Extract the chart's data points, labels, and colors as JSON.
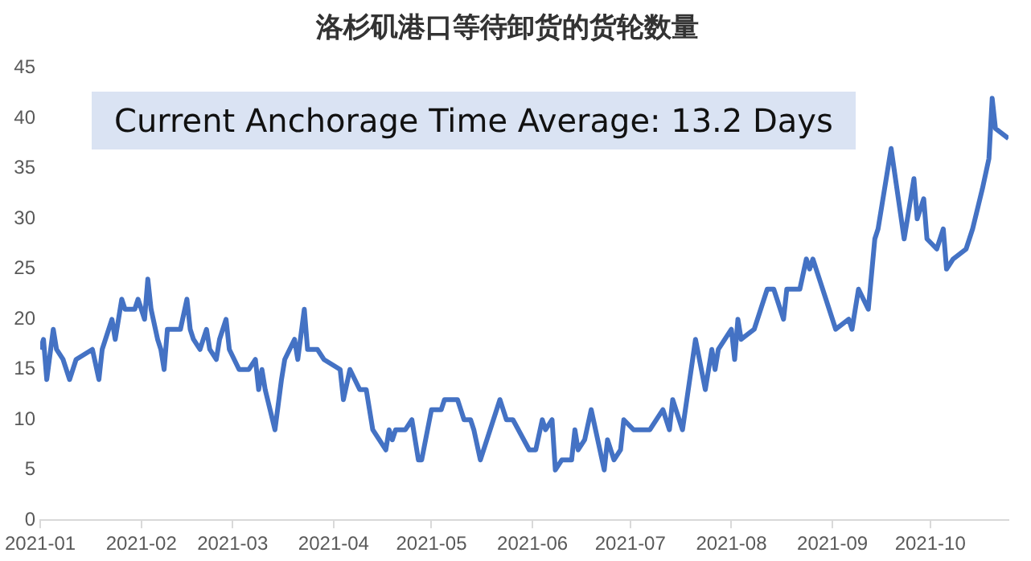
{
  "chart_data": {
    "type": "line",
    "title": "洛杉矶港口等待卸货的货轮数量",
    "annotations": [
      "Current Anchorage Time Average: 13.2 Days"
    ],
    "x": [
      "2021-01-01",
      "2021-01-02",
      "2021-01-03",
      "2021-01-05",
      "2021-01-06",
      "2021-01-08",
      "2021-01-10",
      "2021-01-12",
      "2021-01-17",
      "2021-01-19",
      "2021-01-20",
      "2021-01-23",
      "2021-01-24",
      "2021-01-26",
      "2021-01-27",
      "2021-01-30",
      "2021-01-31",
      "2021-02-02",
      "2021-02-03",
      "2021-02-04",
      "2021-02-06",
      "2021-02-07",
      "2021-02-08",
      "2021-02-09",
      "2021-02-13",
      "2021-02-15",
      "2021-02-16",
      "2021-02-17",
      "2021-02-19",
      "2021-02-21",
      "2021-02-22",
      "2021-02-24",
      "2021-02-25",
      "2021-02-27",
      "2021-02-28",
      "2021-03-03",
      "2021-03-06",
      "2021-03-08",
      "2021-03-09",
      "2021-03-10",
      "2021-03-11",
      "2021-03-14",
      "2021-03-16",
      "2021-03-17",
      "2021-03-20",
      "2021-03-21",
      "2021-03-23",
      "2021-03-24",
      "2021-03-27",
      "2021-03-29",
      "2021-04-03",
      "2021-04-04",
      "2021-04-06",
      "2021-04-09",
      "2021-04-11",
      "2021-04-13",
      "2021-04-15",
      "2021-04-17",
      "2021-04-18",
      "2021-04-19",
      "2021-04-20",
      "2021-04-23",
      "2021-04-25",
      "2021-04-27",
      "2021-04-28",
      "2021-05-01",
      "2021-05-04",
      "2021-05-05",
      "2021-05-09",
      "2021-05-11",
      "2021-05-13",
      "2021-05-14",
      "2021-05-16",
      "2021-05-19",
      "2021-05-22",
      "2021-05-24",
      "2021-05-26",
      "2021-05-31",
      "2021-06-02",
      "2021-06-04",
      "2021-06-05",
      "2021-06-07",
      "2021-06-08",
      "2021-06-10",
      "2021-06-13",
      "2021-06-14",
      "2021-06-15",
      "2021-06-17",
      "2021-06-19",
      "2021-06-21",
      "2021-06-23",
      "2021-06-24",
      "2021-06-26",
      "2021-06-28",
      "2021-06-29",
      "2021-07-02",
      "2021-07-07",
      "2021-07-11",
      "2021-07-13",
      "2021-07-14",
      "2021-07-17",
      "2021-07-21",
      "2021-07-24",
      "2021-07-26",
      "2021-07-27",
      "2021-07-28",
      "2021-07-30",
      "2021-08-01",
      "2021-08-02",
      "2021-08-03",
      "2021-08-04",
      "2021-08-08",
      "2021-08-12",
      "2021-08-14",
      "2021-08-17",
      "2021-08-18",
      "2021-08-22",
      "2021-08-24",
      "2021-08-25",
      "2021-08-26",
      "2021-08-29",
      "2021-08-31",
      "2021-09-02",
      "2021-09-06",
      "2021-09-07",
      "2021-09-09",
      "2021-09-12",
      "2021-09-14",
      "2021-09-15",
      "2021-09-19",
      "2021-09-23",
      "2021-09-26",
      "2021-09-27",
      "2021-09-29",
      "2021-09-30",
      "2021-10-03",
      "2021-10-05",
      "2021-10-06",
      "2021-10-08",
      "2021-10-12",
      "2021-10-14",
      "2021-10-17",
      "2021-10-19",
      "2021-10-20",
      "2021-10-21",
      "2021-10-25"
    ],
    "series": [
      {
        "color": "#4472c4",
        "values": [
          17,
          18,
          14,
          19,
          17,
          16,
          14,
          16,
          17,
          14,
          17,
          20,
          18,
          22,
          21,
          21,
          22,
          20,
          24,
          21,
          18,
          17,
          15,
          19,
          19,
          22,
          19,
          18,
          17,
          19,
          17,
          16,
          18,
          20,
          17,
          15,
          15,
          16,
          13,
          15,
          13,
          9,
          14,
          16,
          18,
          16,
          21,
          17,
          17,
          16,
          15,
          12,
          15,
          13,
          13,
          9,
          8,
          7,
          9,
          8,
          9,
          9,
          10,
          6,
          6,
          11,
          11,
          12,
          12,
          10,
          10,
          9,
          6,
          9,
          12,
          10,
          10,
          7,
          7,
          10,
          9,
          10,
          5,
          6,
          6,
          9,
          7,
          8,
          11,
          8,
          5,
          8,
          6,
          7,
          10,
          9,
          9,
          11,
          9,
          12,
          9,
          18,
          13,
          17,
          15,
          17,
          18,
          19,
          16,
          20,
          18,
          19,
          23,
          23,
          20,
          23,
          23,
          26,
          25,
          26,
          23,
          21,
          19,
          20,
          19,
          23,
          21,
          28,
          29,
          37,
          28,
          34,
          30,
          32,
          28,
          27,
          29,
          25,
          26,
          27,
          29,
          33,
          36,
          42,
          39,
          38
        ]
      }
    ],
    "xlim": [
      "2021-01-01",
      "2021-10-25"
    ],
    "xticks": [
      "2021-01",
      "2021-02",
      "2021-03",
      "2021-04",
      "2021-05",
      "2021-06",
      "2021-07",
      "2021-08",
      "2021-09",
      "2021-10"
    ],
    "ylim": [
      0,
      45
    ],
    "yticks": [
      0,
      5,
      10,
      15,
      20,
      25,
      30,
      35,
      40,
      45
    ],
    "grid": false,
    "legend": false,
    "marker": "none",
    "line_style": "solid"
  }
}
